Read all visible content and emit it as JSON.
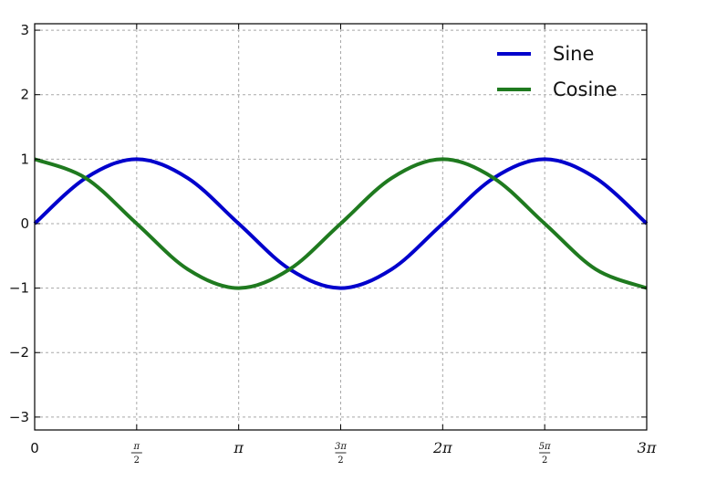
{
  "chart_data": {
    "type": "line",
    "xlim": [
      0,
      9.42478
    ],
    "ylim": [
      -3.2,
      3.1
    ],
    "grid": true,
    "legend_position": "top-right",
    "x_ticks": [
      {
        "value": 0,
        "label": "0"
      },
      {
        "value": 1.570796,
        "num": "π",
        "den": "2"
      },
      {
        "value": 3.141593,
        "label": "π"
      },
      {
        "value": 4.712389,
        "num": "3π",
        "den": "2"
      },
      {
        "value": 6.283185,
        "label": "2π"
      },
      {
        "value": 7.853982,
        "num": "5π",
        "den": "2"
      },
      {
        "value": 9.424778,
        "label": "3π"
      }
    ],
    "y_ticks": [
      {
        "value": 3,
        "label": "3"
      },
      {
        "value": 2,
        "label": "2"
      },
      {
        "value": 1,
        "label": "1"
      },
      {
        "value": 0,
        "label": "0"
      },
      {
        "value": -1,
        "label": "−1"
      },
      {
        "value": -2,
        "label": "−2"
      },
      {
        "value": -3,
        "label": "−3"
      }
    ],
    "series": [
      {
        "name": "Sine",
        "color": "#0000cc",
        "x": [
          0,
          0.785398,
          1.570796,
          2.356194,
          3.141593,
          3.926991,
          4.712389,
          5.497787,
          6.283185,
          7.068583,
          7.853982,
          8.63938,
          9.424778
        ],
        "y": [
          0,
          0.707,
          1,
          0.707,
          0,
          -0.707,
          -1,
          -0.707,
          0,
          0.707,
          1,
          0.707,
          0
        ]
      },
      {
        "name": "Cosine",
        "color": "#1f7a1f",
        "x": [
          0,
          0.785398,
          1.570796,
          2.356194,
          3.141593,
          3.926991,
          4.712389,
          5.497787,
          6.283185,
          7.068583,
          7.853982,
          8.63938,
          9.424778
        ],
        "y": [
          1,
          0.707,
          0,
          -0.707,
          -1,
          -0.707,
          0,
          0.707,
          1,
          0.707,
          0,
          -0.707,
          -1
        ]
      }
    ]
  }
}
